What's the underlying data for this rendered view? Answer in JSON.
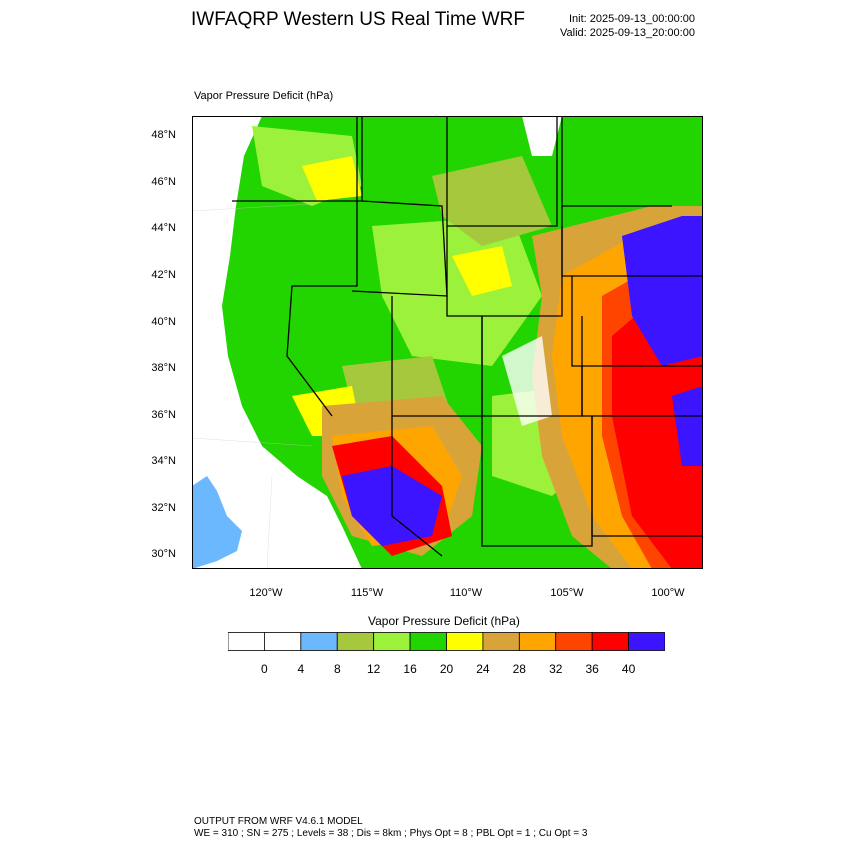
{
  "header": {
    "title": "IWFAQRP Western US Real Time WRF",
    "init": "Init: 2025-09-13_00:00:00",
    "valid": "Valid: 2025-09-13_20:00:00"
  },
  "map": {
    "field_label": "Vapor Pressure Deficit   (hPa)",
    "lat_labels": [
      "48°N",
      "46°N",
      "44°N",
      "42°N",
      "40°N",
      "38°N",
      "36°N",
      "34°N",
      "32°N",
      "30°N"
    ],
    "lon_labels": [
      "120°W",
      "115°W",
      "110°W",
      "105°W",
      "100°W"
    ],
    "region_colors": {
      "ocean": "#ffffff",
      "lake": "#6bb8ff",
      "green": "#22d400",
      "lightgreen": "#9cf23a",
      "olive": "#a6c83c",
      "yellow": "#ffff00",
      "tan": "#d8a43a",
      "orange": "#ffa500",
      "redorange": "#ff4400",
      "red": "#ff0000",
      "blue": "#3c14ff"
    }
  },
  "colorbar": {
    "title": "Vapor Pressure Deficit  (hPa)",
    "colors": [
      "#ffffff",
      "#ffffff",
      "#6bb8ff",
      "#a6c83c",
      "#9cf23a",
      "#22d400",
      "#ffff00",
      "#d8a43a",
      "#ffa500",
      "#ff4400",
      "#ff0000",
      "#3c14ff"
    ],
    "labels": [
      "0",
      "4",
      "8",
      "12",
      "16",
      "20",
      "24",
      "28",
      "32",
      "36",
      "40"
    ]
  },
  "footer": {
    "line1": "OUTPUT FROM WRF V4.6.1 MODEL",
    "line2": "WE = 310 ; SN = 275 ; Levels = 38 ; Dis = 8km ; Phys Opt = 8 ; PBL Opt = 1 ; Cu Opt = 3"
  }
}
